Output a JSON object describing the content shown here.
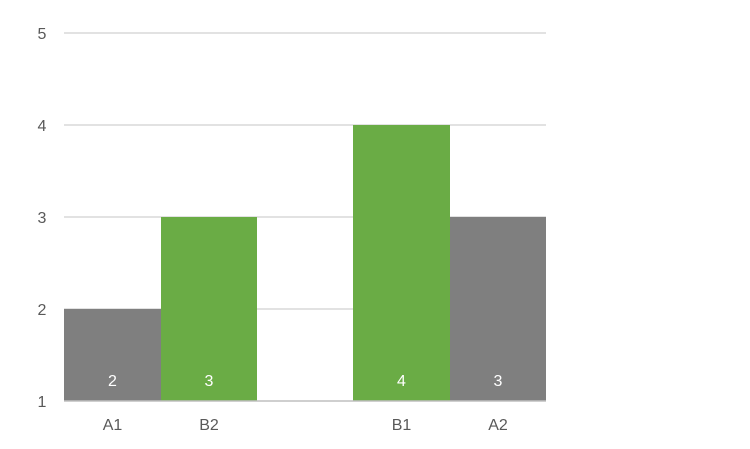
{
  "chart_data": {
    "type": "bar",
    "ylim": [
      1,
      5
    ],
    "yticks": [
      1,
      2,
      3,
      4,
      5
    ],
    "grid": true,
    "title": "",
    "xlabel": "",
    "ylabel": "",
    "bars": [
      {
        "label": "A1",
        "value": 2,
        "color": "#7f7f7f"
      },
      {
        "label": "B2",
        "value": 3,
        "color": "#6aac45"
      },
      {
        "label": "B1",
        "value": 4,
        "color": "#6aac45"
      },
      {
        "label": "A2",
        "value": 3,
        "color": "#7f7f7f"
      }
    ],
    "gridline_color": "#d9d9d9",
    "axis_color": "#bfbfbf"
  }
}
